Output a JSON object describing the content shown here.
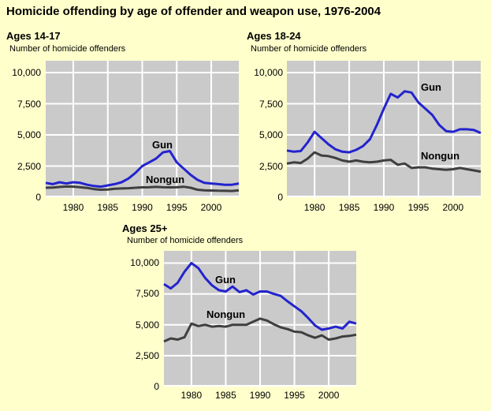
{
  "page_title": "Homicide offending by age of offender and weapon use, 1976-2004",
  "colors": {
    "background": "#FFFFCC",
    "plot_background": "#CACACA",
    "gridline": "#FFFFFF",
    "gun_line": "#2323CE",
    "nongun_line": "#3F3F3F",
    "text": "#000000"
  },
  "chart_data": [
    {
      "type": "line",
      "title": "Ages 14-17",
      "ylabel": "Number of homicide offenders",
      "xlim": [
        1976,
        2004
      ],
      "ylim": [
        0,
        10950
      ],
      "grid": true,
      "legend_position": "inline-annotations",
      "x": [
        1976,
        1977,
        1978,
        1979,
        1980,
        1981,
        1982,
        1983,
        1984,
        1985,
        1986,
        1987,
        1988,
        1989,
        1990,
        1991,
        1992,
        1993,
        1994,
        1995,
        1996,
        1997,
        1998,
        1999,
        2000,
        2001,
        2002,
        2003,
        2004
      ],
      "xticks": [
        1980,
        1985,
        1990,
        1995,
        2000
      ],
      "yticks": [
        {
          "label": "10,000",
          "value": 10000
        },
        {
          "label": "7,500",
          "value": 7500
        },
        {
          "label": "5,000",
          "value": 5000
        },
        {
          "label": "2,500",
          "value": 2500
        },
        {
          "label": "0",
          "value": 0
        }
      ],
      "series": [
        {
          "name": "Gun",
          "color": "#2323CE",
          "values": [
            1150,
            1050,
            1200,
            1100,
            1200,
            1150,
            1000,
            900,
            850,
            950,
            1050,
            1200,
            1500,
            1950,
            2500,
            2800,
            3100,
            3600,
            3700,
            2800,
            2300,
            1800,
            1400,
            1150,
            1100,
            1050,
            1000,
            1000,
            1100
          ]
        },
        {
          "name": "Nongun",
          "color": "#3F3F3F",
          "values": [
            760,
            780,
            820,
            860,
            850,
            800,
            750,
            650,
            600,
            620,
            680,
            700,
            720,
            760,
            790,
            800,
            830,
            800,
            790,
            800,
            840,
            760,
            600,
            550,
            540,
            520,
            510,
            500,
            560
          ]
        }
      ]
    },
    {
      "type": "line",
      "title": "Ages 18-24",
      "ylabel": "Number of homicide offenders",
      "xlim": [
        1976,
        2004
      ],
      "ylim": [
        0,
        10950
      ],
      "grid": true,
      "legend_position": "inline-annotations",
      "x": [
        1976,
        1977,
        1978,
        1979,
        1980,
        1981,
        1982,
        1983,
        1984,
        1985,
        1986,
        1987,
        1988,
        1989,
        1990,
        1991,
        1992,
        1993,
        1994,
        1995,
        1996,
        1997,
        1998,
        1999,
        2000,
        2001,
        2002,
        2003,
        2004
      ],
      "xticks": [
        1980,
        1985,
        1990,
        1995,
        2000
      ],
      "yticks": [
        {
          "label": "10,000",
          "value": 10000
        },
        {
          "label": "7,500",
          "value": 7500
        },
        {
          "label": "5,000",
          "value": 5000
        },
        {
          "label": "2,500",
          "value": 2500
        },
        {
          "label": "0",
          "value": 0
        }
      ],
      "series": [
        {
          "name": "Gun",
          "color": "#2323CE",
          "values": [
            3750,
            3650,
            3700,
            4400,
            5250,
            4750,
            4250,
            3850,
            3650,
            3600,
            3800,
            4100,
            4650,
            5800,
            7100,
            8300,
            8000,
            8500,
            8400,
            7600,
            7100,
            6600,
            5800,
            5300,
            5250,
            5450,
            5450,
            5400,
            5150
          ]
        },
        {
          "name": "Nongun",
          "color": "#3F3F3F",
          "values": [
            2700,
            2800,
            2750,
            3100,
            3600,
            3350,
            3300,
            3150,
            2950,
            2850,
            2950,
            2850,
            2800,
            2850,
            2950,
            3000,
            2600,
            2700,
            2350,
            2400,
            2400,
            2300,
            2250,
            2200,
            2250,
            2350,
            2250,
            2150,
            2050
          ]
        }
      ]
    },
    {
      "type": "line",
      "title": "Ages 25+",
      "ylabel": "Number of homicide offenders",
      "xlim": [
        1976,
        2004
      ],
      "ylim": [
        0,
        10990
      ],
      "grid": true,
      "legend_position": "inline-annotations",
      "x": [
        1976,
        1977,
        1978,
        1979,
        1980,
        1981,
        1982,
        1983,
        1984,
        1985,
        1986,
        1987,
        1988,
        1989,
        1990,
        1991,
        1992,
        1993,
        1994,
        1995,
        1996,
        1997,
        1998,
        1999,
        2000,
        2001,
        2002,
        2003,
        2004
      ],
      "xticks": [
        1980,
        1985,
        1990,
        1995,
        2000
      ],
      "yticks": [
        {
          "label": "10,000",
          "value": 10000
        },
        {
          "label": "7,500",
          "value": 7500
        },
        {
          "label": "5,000",
          "value": 5000
        },
        {
          "label": "2,500",
          "value": 2500
        },
        {
          "label": "0",
          "value": 0
        }
      ],
      "series": [
        {
          "name": "Gun",
          "color": "#2323CE",
          "values": [
            8300,
            7950,
            8400,
            9300,
            10000,
            9600,
            8800,
            8200,
            7800,
            7700,
            8100,
            7650,
            7800,
            7450,
            7700,
            7700,
            7500,
            7350,
            6900,
            6500,
            6100,
            5550,
            4950,
            4600,
            4700,
            4850,
            4700,
            5250,
            5100
          ]
        },
        {
          "name": "Nongun",
          "color": "#3F3F3F",
          "values": [
            3650,
            3900,
            3800,
            4000,
            5100,
            4900,
            5000,
            4850,
            4900,
            4850,
            5000,
            5000,
            5000,
            5250,
            5500,
            5350,
            5050,
            4800,
            4650,
            4450,
            4400,
            4150,
            3950,
            4150,
            3800,
            3900,
            4050,
            4100,
            4200
          ]
        }
      ]
    }
  ]
}
